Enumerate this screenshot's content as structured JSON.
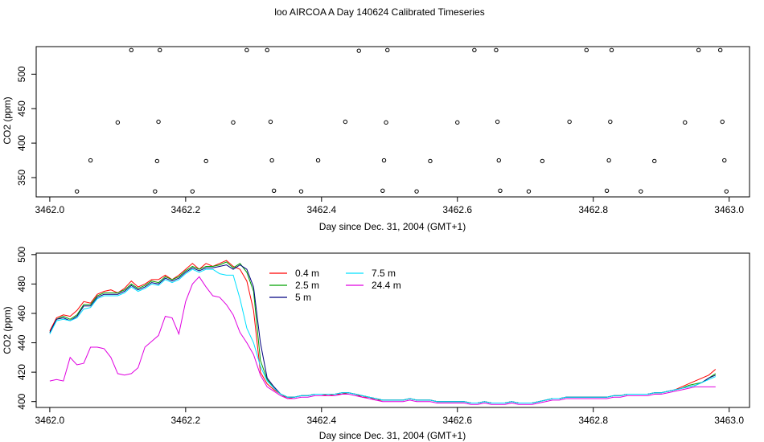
{
  "title": "loo AIRCOA A  Day 140624  Calibrated Timeseries",
  "chart_data": [
    {
      "type": "line",
      "xlabel": "Day since Dec. 31, 2004 (GMT+1)",
      "ylabel": "CO2 (ppm)",
      "xlim": [
        3461.98,
        3463.03
      ],
      "ylim": [
        322,
        540
      ],
      "xticks": [
        "3462.0",
        "3462.2",
        "3462.4",
        "3462.6",
        "3462.8",
        "3463.0"
      ],
      "yticks": [
        "350",
        "400",
        "450",
        "500"
      ],
      "grid": false,
      "scatter_markers": [
        {
          "x": 3462.04,
          "y": 330
        },
        {
          "x": 3462.06,
          "y": 375
        },
        {
          "x": 3462.1,
          "y": 430
        },
        {
          "x": 3462.12,
          "y": 535
        },
        {
          "x": 3462.155,
          "y": 330
        },
        {
          "x": 3462.158,
          "y": 374
        },
        {
          "x": 3462.16,
          "y": 431
        },
        {
          "x": 3462.162,
          "y": 535
        },
        {
          "x": 3462.21,
          "y": 330
        },
        {
          "x": 3462.23,
          "y": 374
        },
        {
          "x": 3462.27,
          "y": 430
        },
        {
          "x": 3462.29,
          "y": 535
        },
        {
          "x": 3462.32,
          "y": 535
        },
        {
          "x": 3462.325,
          "y": 431
        },
        {
          "x": 3462.327,
          "y": 375
        },
        {
          "x": 3462.33,
          "y": 331
        },
        {
          "x": 3462.37,
          "y": 330
        },
        {
          "x": 3462.395,
          "y": 375
        },
        {
          "x": 3462.435,
          "y": 431
        },
        {
          "x": 3462.455,
          "y": 534
        },
        {
          "x": 3462.49,
          "y": 331
        },
        {
          "x": 3462.492,
          "y": 375
        },
        {
          "x": 3462.495,
          "y": 430
        },
        {
          "x": 3462.497,
          "y": 535
        },
        {
          "x": 3462.54,
          "y": 330
        },
        {
          "x": 3462.56,
          "y": 374
        },
        {
          "x": 3462.6,
          "y": 430
        },
        {
          "x": 3462.625,
          "y": 535
        },
        {
          "x": 3462.657,
          "y": 535
        },
        {
          "x": 3462.659,
          "y": 431
        },
        {
          "x": 3462.661,
          "y": 375
        },
        {
          "x": 3462.663,
          "y": 331
        },
        {
          "x": 3462.705,
          "y": 330
        },
        {
          "x": 3462.725,
          "y": 374
        },
        {
          "x": 3462.765,
          "y": 431
        },
        {
          "x": 3462.79,
          "y": 535
        },
        {
          "x": 3462.82,
          "y": 331
        },
        {
          "x": 3462.823,
          "y": 375
        },
        {
          "x": 3462.825,
          "y": 431
        },
        {
          "x": 3462.827,
          "y": 535
        },
        {
          "x": 3462.87,
          "y": 330
        },
        {
          "x": 3462.89,
          "y": 374
        },
        {
          "x": 3462.935,
          "y": 430
        },
        {
          "x": 3462.955,
          "y": 535
        },
        {
          "x": 3462.987,
          "y": 535
        },
        {
          "x": 3462.99,
          "y": 431
        },
        {
          "x": 3462.993,
          "y": 375
        },
        {
          "x": 3462.996,
          "y": 330
        }
      ]
    },
    {
      "type": "line",
      "xlabel": "Day since Dec. 31, 2004 (GMT+1)",
      "ylabel": "CO2 (ppm)",
      "xlim": [
        3461.98,
        3463.03
      ],
      "ylim": [
        396,
        501
      ],
      "xticks": [
        "3462.0",
        "3462.2",
        "3462.4",
        "3462.6",
        "3462.8",
        "3463.0"
      ],
      "yticks": [
        "400",
        "420",
        "440",
        "460",
        "480",
        "500"
      ],
      "grid": false,
      "legend": {
        "placement": "top-center",
        "entries": [
          {
            "name": "0.4 m",
            "color": "#ff0000"
          },
          {
            "name": "2.5 m",
            "color": "#00a000"
          },
          {
            "name": "5 m",
            "color": "#000080"
          },
          {
            "name": "7.5 m",
            "color": "#00e0ff"
          },
          {
            "name": "24.4 m",
            "color": "#e000e0"
          }
        ]
      },
      "x": [
        3462.0,
        3462.01,
        3462.02,
        3462.03,
        3462.04,
        3462.05,
        3462.06,
        3462.07,
        3462.08,
        3462.09,
        3462.1,
        3462.11,
        3462.12,
        3462.13,
        3462.14,
        3462.15,
        3462.16,
        3462.17,
        3462.18,
        3462.19,
        3462.2,
        3462.21,
        3462.22,
        3462.23,
        3462.24,
        3462.25,
        3462.26,
        3462.27,
        3462.28,
        3462.29,
        3462.3,
        3462.31,
        3462.32,
        3462.33,
        3462.34,
        3462.35,
        3462.36,
        3462.37,
        3462.38,
        3462.39,
        3462.4,
        3462.41,
        3462.42,
        3462.43,
        3462.44,
        3462.45,
        3462.46,
        3462.47,
        3462.48,
        3462.49,
        3462.5,
        3462.51,
        3462.52,
        3462.53,
        3462.54,
        3462.55,
        3462.56,
        3462.57,
        3462.58,
        3462.59,
        3462.6,
        3462.61,
        3462.62,
        3462.63,
        3462.64,
        3462.65,
        3462.66,
        3462.67,
        3462.68,
        3462.69,
        3462.7,
        3462.71,
        3462.72,
        3462.73,
        3462.74,
        3462.75,
        3462.76,
        3462.77,
        3462.78,
        3462.79,
        3462.8,
        3462.81,
        3462.82,
        3462.83,
        3462.84,
        3462.85,
        3462.86,
        3462.87,
        3462.88,
        3462.89,
        3462.9,
        3462.91,
        3462.92,
        3462.93,
        3462.94,
        3462.95,
        3462.96,
        3462.97,
        3462.98
      ],
      "series": [
        {
          "name": "0.4 m",
          "color": "#ff0000",
          "values": [
            448,
            457,
            459,
            458,
            462,
            468,
            467,
            473,
            475,
            476,
            474,
            477,
            482,
            478,
            480,
            483,
            483,
            486,
            483,
            486,
            490,
            494,
            490,
            494,
            492,
            494,
            496,
            492,
            490,
            482,
            462,
            420,
            412,
            408,
            405,
            402,
            403,
            404,
            404,
            405,
            405,
            404,
            405,
            405,
            406,
            405,
            403,
            403,
            401,
            401,
            401,
            401,
            401,
            402,
            401,
            401,
            401,
            400,
            400,
            400,
            400,
            400,
            399,
            399,
            400,
            399,
            399,
            399,
            400,
            399,
            399,
            399,
            400,
            401,
            402,
            402,
            403,
            403,
            403,
            403,
            403,
            403,
            403,
            404,
            404,
            405,
            405,
            405,
            405,
            406,
            406,
            407,
            408,
            410,
            412,
            414,
            416,
            418,
            422
          ]
        },
        {
          "name": "2.5 m",
          "color": "#00a000",
          "values": [
            447,
            456,
            458,
            456,
            459,
            466,
            466,
            472,
            474,
            474,
            474,
            476,
            480,
            477,
            479,
            482,
            481,
            485,
            483,
            485,
            489,
            492,
            490,
            492,
            492,
            493,
            495,
            491,
            494,
            488,
            475,
            428,
            415,
            409,
            405,
            403,
            403,
            404,
            404,
            405,
            405,
            405,
            405,
            406,
            406,
            405,
            404,
            403,
            402,
            401,
            401,
            401,
            401,
            402,
            401,
            401,
            401,
            400,
            400,
            400,
            400,
            400,
            399,
            399,
            400,
            399,
            399,
            399,
            400,
            399,
            399,
            399,
            400,
            401,
            402,
            402,
            403,
            403,
            403,
            403,
            403,
            403,
            403,
            404,
            404,
            405,
            405,
            405,
            405,
            406,
            406,
            407,
            408,
            409,
            411,
            412,
            413,
            416,
            419
          ]
        },
        {
          "name": "5 m",
          "color": "#000080",
          "values": [
            447,
            456,
            457,
            455,
            458,
            465,
            465,
            471,
            473,
            473,
            473,
            475,
            479,
            476,
            478,
            481,
            480,
            484,
            482,
            484,
            488,
            491,
            489,
            491,
            491,
            492,
            493,
            490,
            493,
            490,
            478,
            440,
            416,
            410,
            405,
            403,
            403,
            404,
            404,
            405,
            405,
            405,
            405,
            406,
            406,
            405,
            404,
            403,
            402,
            401,
            401,
            401,
            401,
            402,
            401,
            401,
            401,
            400,
            400,
            400,
            400,
            400,
            399,
            399,
            400,
            399,
            399,
            399,
            400,
            399,
            399,
            399,
            400,
            401,
            402,
            402,
            403,
            403,
            403,
            403,
            403,
            403,
            403,
            404,
            404,
            405,
            405,
            405,
            405,
            406,
            406,
            407,
            408,
            409,
            410,
            411,
            413,
            416,
            418
          ]
        },
        {
          "name": "7.5 m",
          "color": "#00e0ff",
          "values": [
            446,
            455,
            456,
            455,
            457,
            463,
            464,
            470,
            472,
            472,
            472,
            474,
            478,
            475,
            477,
            480,
            479,
            483,
            481,
            483,
            487,
            490,
            488,
            490,
            490,
            487,
            486,
            486,
            470,
            450,
            440,
            424,
            414,
            409,
            405,
            403,
            403,
            404,
            404,
            405,
            405,
            405,
            405,
            406,
            406,
            405,
            404,
            403,
            402,
            401,
            401,
            401,
            401,
            402,
            401,
            401,
            401,
            400,
            400,
            400,
            400,
            400,
            399,
            399,
            400,
            399,
            399,
            399,
            400,
            399,
            399,
            399,
            400,
            401,
            402,
            402,
            403,
            403,
            403,
            403,
            403,
            403,
            403,
            404,
            404,
            405,
            405,
            405,
            405,
            406,
            406,
            407,
            408,
            409,
            410,
            411,
            413,
            415,
            417
          ]
        },
        {
          "name": "24.4 m",
          "color": "#e000e0",
          "values": [
            414,
            415,
            414,
            430,
            425,
            426,
            437,
            437,
            436,
            430,
            419,
            418,
            419,
            423,
            437,
            441,
            445,
            458,
            457,
            446,
            468,
            480,
            485,
            478,
            472,
            471,
            466,
            459,
            447,
            440,
            432,
            418,
            410,
            407,
            404,
            402,
            402,
            403,
            403,
            404,
            404,
            404,
            404,
            405,
            405,
            404,
            403,
            402,
            401,
            400,
            400,
            400,
            400,
            401,
            400,
            400,
            400,
            399,
            399,
            399,
            399,
            399,
            398,
            398,
            399,
            398,
            398,
            398,
            399,
            398,
            398,
            398,
            399,
            400,
            401,
            401,
            402,
            402,
            402,
            402,
            402,
            402,
            402,
            403,
            403,
            404,
            404,
            404,
            404,
            405,
            405,
            406,
            407,
            408,
            409,
            410,
            410,
            410,
            410
          ]
        }
      ]
    }
  ]
}
